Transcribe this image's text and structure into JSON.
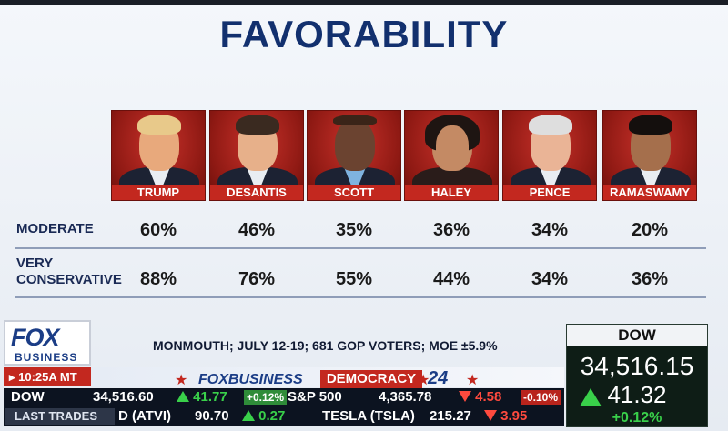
{
  "title": "FAVORABILITY",
  "candidates": [
    {
      "name": "TRUMP",
      "skin": "#e8a97c",
      "hair": "#e8c98a"
    },
    {
      "name": "DESANTIS",
      "skin": "#e7b08a",
      "hair": "#3a2a20"
    },
    {
      "name": "SCOTT",
      "skin": "#6b4330",
      "hair": "#3a2418"
    },
    {
      "name": "HALEY",
      "skin": "#c48a64",
      "hair": "#1e1512"
    },
    {
      "name": "PENCE",
      "skin": "#eab496",
      "hair": "#dedede"
    },
    {
      "name": "RAMASWAMY",
      "skin": "#a56f4c",
      "hair": "#140f0d"
    }
  ],
  "rows": [
    {
      "label": "MODERATE",
      "values": [
        "60%",
        "46%",
        "35%",
        "36%",
        "34%",
        "20%"
      ]
    },
    {
      "label_line1": "VERY",
      "label_line2": "CONSERVATIVE",
      "values": [
        "88%",
        "76%",
        "55%",
        "44%",
        "34%",
        "36%"
      ]
    }
  ],
  "source": "MONMOUTH; JULY 12-19; 681 GOP VOTERS; MOE ±5.9%",
  "logo": {
    "fox": "FOX",
    "business": "BUSINESS"
  },
  "time": "10:25A MT",
  "band": {
    "logo": "FOXBUSINESS",
    "democracy": "DEMOCRACY",
    "year": "24"
  },
  "ticker_row1": {
    "dow_label": "DOW",
    "dow_value": "34,516.60",
    "dow_change": "41.77",
    "dow_pct": "+0.12%",
    "sp_label": "S&P 500",
    "sp_value": "4,365.78",
    "sp_change": "4.58",
    "sp_pct": "-0.10%"
  },
  "ticker_row2": {
    "label": "LAST TRADES",
    "atvi_sym": "D (ATVI)",
    "atvi_price": "90.70",
    "atvi_change": "0.27",
    "tsla_sym": "TESLA (TSLA)",
    "tsla_price": "215.27",
    "tsla_change": "3.95"
  },
  "dow_box": {
    "label": "DOW",
    "value": "34,516.15",
    "change": "41.32",
    "pct": "+0.12%"
  },
  "colors": {
    "title": "#12306e",
    "red": "#c3281f",
    "green": "#39d04a"
  }
}
